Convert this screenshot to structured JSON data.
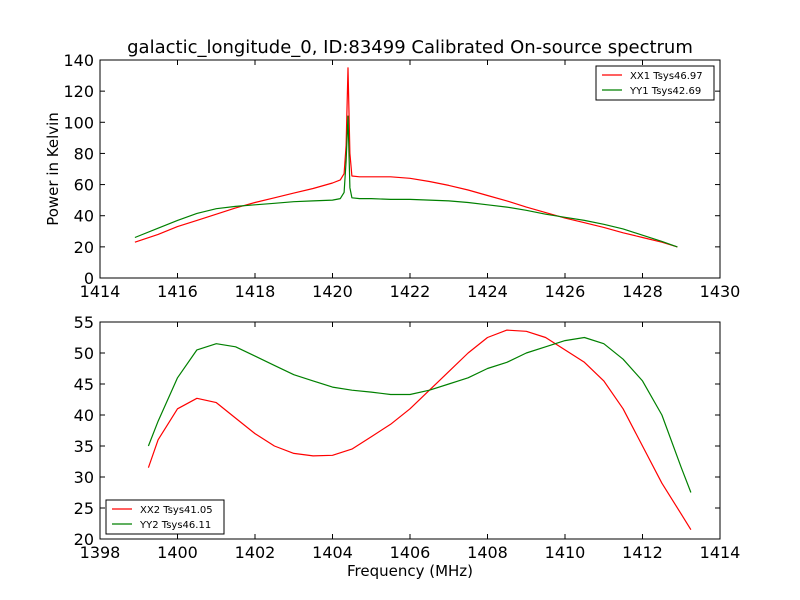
{
  "title": "galactic_longitude_0, ID:83499 Calibrated On-source spectrum",
  "chart_data": [
    {
      "type": "line",
      "xlabel": "",
      "ylabel": "Power in Kelvin",
      "xlim": [
        1414,
        1430
      ],
      "ylim": [
        0,
        140
      ],
      "xticks": [
        "1414",
        "1416",
        "1418",
        "1420",
        "1422",
        "1424",
        "1426",
        "1428",
        "1430"
      ],
      "yticks": [
        "0",
        "20",
        "40",
        "60",
        "80",
        "100",
        "120",
        "140"
      ],
      "legend_position": "top-right",
      "series": [
        {
          "name": "XX1 Tsys46.97",
          "color": "#ff0000",
          "x": [
            1414.9,
            1415.5,
            1416,
            1416.5,
            1417,
            1417.5,
            1418,
            1418.5,
            1419,
            1419.5,
            1420,
            1420.2,
            1420.3,
            1420.35,
            1420.4,
            1420.45,
            1420.5,
            1420.7,
            1421,
            1421.5,
            1422,
            1422.5,
            1423,
            1423.5,
            1424,
            1424.5,
            1425,
            1425.5,
            1426,
            1426.5,
            1427,
            1427.5,
            1428,
            1428.5,
            1428.9
          ],
          "y": [
            23,
            28,
            33,
            37,
            41,
            45,
            48.5,
            51.5,
            54.5,
            57.5,
            61,
            63,
            67,
            85,
            135,
            80,
            65.5,
            65,
            65,
            65,
            64,
            62,
            59.5,
            56.5,
            53,
            49.5,
            45.5,
            42,
            38.5,
            35.5,
            32.5,
            29,
            26,
            23,
            20
          ]
        },
        {
          "name": "YY1 Tsys42.69",
          "color": "#008000",
          "x": [
            1414.9,
            1415.5,
            1416,
            1416.5,
            1417,
            1417.5,
            1418,
            1418.5,
            1419,
            1419.5,
            1420,
            1420.2,
            1420.3,
            1420.35,
            1420.4,
            1420.45,
            1420.5,
            1420.7,
            1421,
            1421.5,
            1422,
            1422.5,
            1423,
            1423.5,
            1424,
            1424.5,
            1425,
            1425.5,
            1426,
            1426.5,
            1427,
            1427.5,
            1428,
            1428.5,
            1428.9
          ],
          "y": [
            26,
            32,
            37,
            41.5,
            44.5,
            46,
            47,
            48,
            49,
            49.5,
            50,
            51,
            55,
            75,
            104,
            58,
            51.5,
            51,
            51,
            50.5,
            50.5,
            50,
            49.5,
            48.5,
            47,
            45.5,
            43.5,
            41,
            39,
            37,
            34.5,
            31.5,
            27.5,
            23.5,
            20
          ]
        }
      ]
    },
    {
      "type": "line",
      "xlabel": "Frequency (MHz)",
      "ylabel": "",
      "xlim": [
        1398,
        1414
      ],
      "ylim": [
        20,
        55
      ],
      "xticks": [
        "1398",
        "1400",
        "1402",
        "1404",
        "1406",
        "1408",
        "1410",
        "1412",
        "1414"
      ],
      "yticks": [
        "20",
        "25",
        "30",
        "35",
        "40",
        "45",
        "50",
        "55"
      ],
      "legend_position": "bottom-left",
      "series": [
        {
          "name": "XX2 Tsys41.05",
          "color": "#ff0000",
          "x": [
            1399.25,
            1399.5,
            1400,
            1400.5,
            1401,
            1401.5,
            1402,
            1402.5,
            1403,
            1403.5,
            1404,
            1404.5,
            1405,
            1405.5,
            1406,
            1406.5,
            1407,
            1407.5,
            1408,
            1408.5,
            1409,
            1409.5,
            1410,
            1410.5,
            1411,
            1411.5,
            1412,
            1412.5,
            1413,
            1413.25
          ],
          "y": [
            31.5,
            36,
            41,
            42.7,
            42,
            39.5,
            37,
            35,
            33.8,
            33.4,
            33.5,
            34.5,
            36.5,
            38.5,
            41,
            44,
            47,
            50,
            52.5,
            53.7,
            53.5,
            52.5,
            50.5,
            48.5,
            45.5,
            41,
            35,
            29,
            24,
            21.5
          ]
        },
        {
          "name": "YY2 Tsys46.11",
          "color": "#008000",
          "x": [
            1399.25,
            1399.5,
            1400,
            1400.5,
            1401,
            1401.5,
            1402,
            1402.5,
            1403,
            1403.5,
            1404,
            1404.5,
            1405,
            1405.5,
            1406,
            1406.5,
            1407,
            1407.5,
            1408,
            1408.5,
            1409,
            1409.5,
            1410,
            1410.5,
            1411,
            1411.5,
            1412,
            1412.5,
            1413,
            1413.25
          ],
          "y": [
            35,
            39,
            46,
            50.5,
            51.5,
            51,
            49.5,
            48,
            46.5,
            45.5,
            44.5,
            44,
            43.7,
            43.3,
            43.3,
            44,
            45,
            46,
            47.5,
            48.5,
            50,
            51,
            52,
            52.5,
            51.5,
            49,
            45.5,
            40,
            31.5,
            27.5
          ]
        }
      ]
    }
  ]
}
